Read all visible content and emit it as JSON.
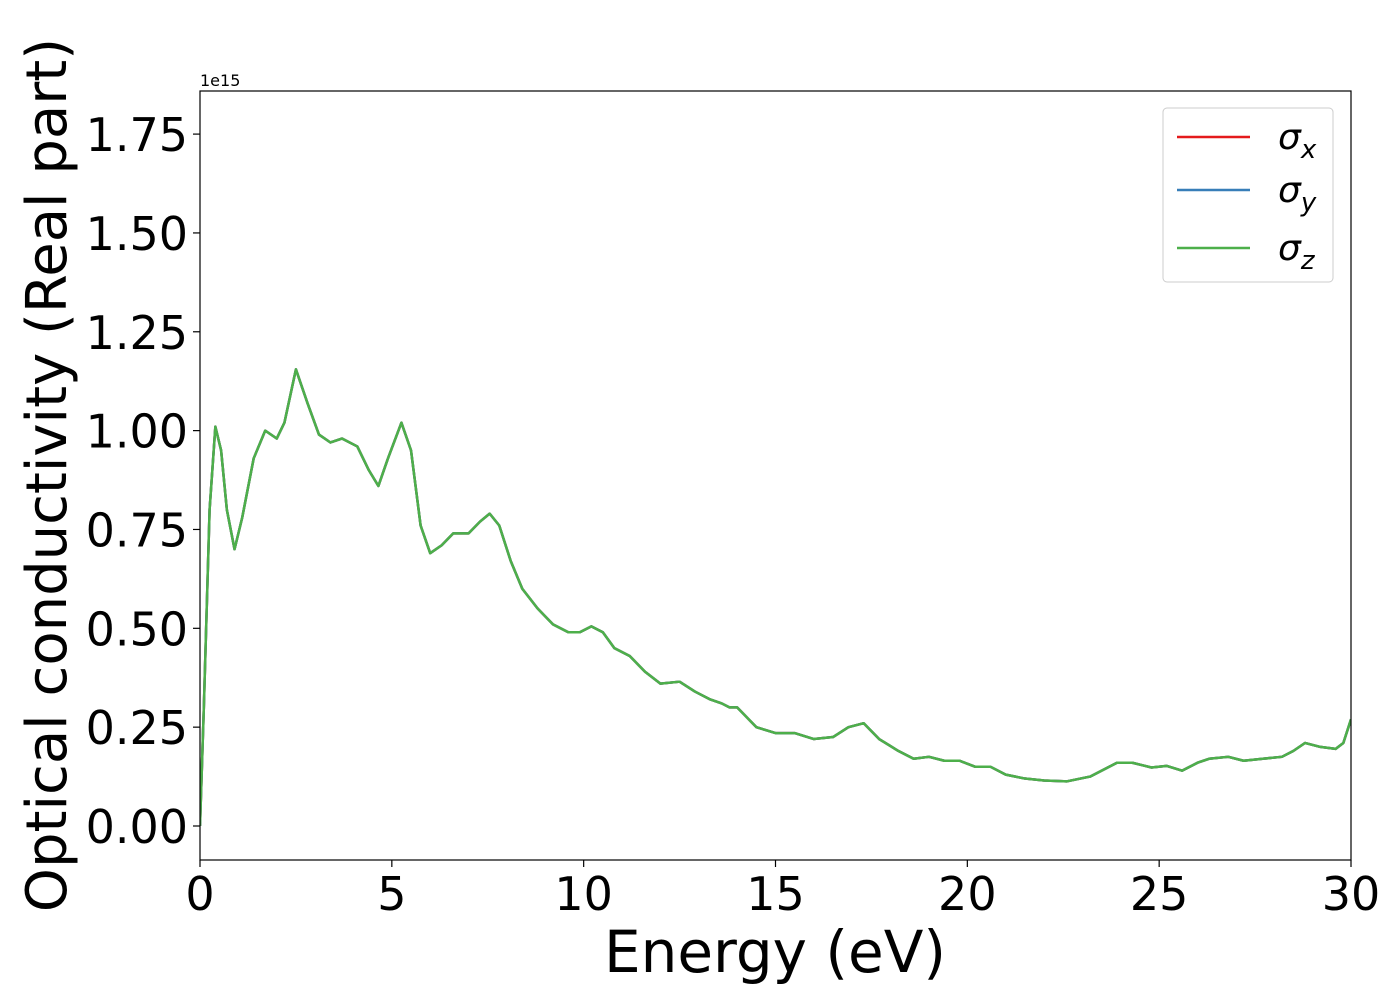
{
  "chart_data": {
    "type": "line",
    "xlabel": "Energy (eV)",
    "ylabel": "Optical conductivity (Real part)",
    "y_offset_label": "1e15",
    "x": [
      0,
      0.1,
      0.25,
      0.4,
      0.55,
      0.7,
      0.9,
      1.1,
      1.4,
      1.7,
      2.0,
      2.2,
      2.5,
      2.8,
      3.1,
      3.4,
      3.7,
      4.1,
      4.4,
      4.65,
      4.9,
      5.25,
      5.5,
      5.75,
      6.0,
      6.3,
      6.6,
      7.0,
      7.3,
      7.55,
      7.8,
      8.1,
      8.4,
      8.8,
      9.2,
      9.6,
      9.9,
      10.2,
      10.5,
      10.8,
      11.2,
      11.6,
      12.0,
      12.5,
      12.9,
      13.3,
      13.6,
      13.8,
      14.0,
      14.2,
      14.5,
      15.0,
      15.5,
      16.0,
      16.5,
      16.9,
      17.3,
      17.7,
      18.2,
      18.6,
      19.0,
      19.4,
      19.8,
      20.2,
      20.6,
      21.0,
      21.5,
      22.0,
      22.6,
      23.2,
      23.9,
      24.3,
      24.8,
      25.2,
      25.6,
      26.0,
      26.3,
      26.8,
      27.2,
      27.7,
      28.2,
      28.5,
      28.8,
      29.2,
      29.6,
      29.8,
      30.0
    ],
    "series": [
      {
        "name": "σx",
        "color": "#e41a1c",
        "values": [
          0,
          0.3,
          0.8,
          1.01,
          0.95,
          0.8,
          0.7,
          0.78,
          0.93,
          1.0,
          0.98,
          1.02,
          1.155,
          1.07,
          0.99,
          0.97,
          0.98,
          0.96,
          0.9,
          0.86,
          0.93,
          1.02,
          0.95,
          0.76,
          0.69,
          0.71,
          0.74,
          0.74,
          0.77,
          0.79,
          0.76,
          0.67,
          0.6,
          0.55,
          0.51,
          0.49,
          0.49,
          0.505,
          0.49,
          0.45,
          0.43,
          0.39,
          0.36,
          0.365,
          0.34,
          0.32,
          0.31,
          0.3,
          0.3,
          0.28,
          0.25,
          0.235,
          0.235,
          0.22,
          0.225,
          0.25,
          0.26,
          0.22,
          0.19,
          0.17,
          0.175,
          0.165,
          0.165,
          0.15,
          0.15,
          0.13,
          0.12,
          0.115,
          0.113,
          0.125,
          0.16,
          0.16,
          0.148,
          0.152,
          0.14,
          0.16,
          0.17,
          0.175,
          0.165,
          0.17,
          0.175,
          0.19,
          0.21,
          0.2,
          0.195,
          0.21,
          0.27
        ]
      },
      {
        "name": "σy",
        "color": "#377eb8",
        "values": [
          0,
          0.3,
          0.8,
          1.01,
          0.95,
          0.8,
          0.7,
          0.78,
          0.93,
          1.0,
          0.98,
          1.02,
          1.155,
          1.07,
          0.99,
          0.97,
          0.98,
          0.96,
          0.9,
          0.86,
          0.93,
          1.02,
          0.95,
          0.76,
          0.69,
          0.71,
          0.74,
          0.74,
          0.77,
          0.79,
          0.76,
          0.67,
          0.6,
          0.55,
          0.51,
          0.49,
          0.49,
          0.505,
          0.49,
          0.45,
          0.43,
          0.39,
          0.36,
          0.365,
          0.34,
          0.32,
          0.31,
          0.3,
          0.3,
          0.28,
          0.25,
          0.235,
          0.235,
          0.22,
          0.225,
          0.25,
          0.26,
          0.22,
          0.19,
          0.17,
          0.175,
          0.165,
          0.165,
          0.15,
          0.15,
          0.13,
          0.12,
          0.115,
          0.113,
          0.125,
          0.16,
          0.16,
          0.148,
          0.152,
          0.14,
          0.16,
          0.17,
          0.175,
          0.165,
          0.17,
          0.175,
          0.19,
          0.21,
          0.2,
          0.195,
          0.21,
          0.27
        ]
      },
      {
        "name": "σz",
        "color": "#4daf4a",
        "values": [
          0,
          0.3,
          0.8,
          1.01,
          0.95,
          0.8,
          0.7,
          0.78,
          0.93,
          1.0,
          0.98,
          1.02,
          1.155,
          1.07,
          0.99,
          0.97,
          0.98,
          0.96,
          0.9,
          0.86,
          0.93,
          1.02,
          0.95,
          0.76,
          0.69,
          0.71,
          0.74,
          0.74,
          0.77,
          0.79,
          0.76,
          0.67,
          0.6,
          0.55,
          0.51,
          0.49,
          0.49,
          0.505,
          0.49,
          0.45,
          0.43,
          0.39,
          0.36,
          0.365,
          0.34,
          0.32,
          0.31,
          0.3,
          0.3,
          0.28,
          0.25,
          0.235,
          0.235,
          0.22,
          0.225,
          0.25,
          0.26,
          0.22,
          0.19,
          0.17,
          0.175,
          0.165,
          0.165,
          0.15,
          0.15,
          0.13,
          0.12,
          0.115,
          0.113,
          0.125,
          0.16,
          0.16,
          0.148,
          0.152,
          0.14,
          0.16,
          0.17,
          0.175,
          0.165,
          0.17,
          0.175,
          0.19,
          0.21,
          0.2,
          0.195,
          0.21,
          0.27
        ]
      }
    ],
    "xlim": [
      0,
      30
    ],
    "xticks": [
      0,
      5,
      10,
      15,
      20,
      25,
      30
    ],
    "ylim": [
      -0.086,
      1.859
    ],
    "yticks": [
      {
        "value": 0,
        "label": "0.00"
      },
      {
        "value": 0.25,
        "label": "0.25"
      },
      {
        "value": 0.5,
        "label": "0.50"
      },
      {
        "value": 0.75,
        "label": "0.75"
      },
      {
        "value": 1,
        "label": "1.00"
      },
      {
        "value": 1.25,
        "label": "1.25"
      },
      {
        "value": 1.5,
        "label": "1.50"
      },
      {
        "value": 1.75,
        "label": "1.75"
      }
    ],
    "grid": false,
    "legend": "upper right"
  }
}
